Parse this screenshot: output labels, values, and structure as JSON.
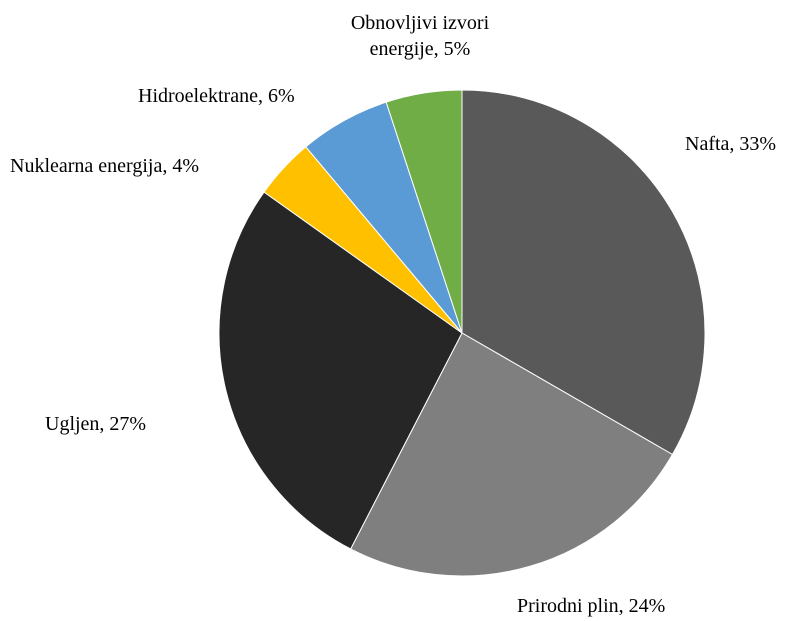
{
  "chart_data": {
    "type": "pie",
    "values": [
      33,
      24,
      27,
      4,
      6,
      5
    ],
    "value_labels": [
      "Nafta, 33%",
      "Prirodni plin, 24%",
      "Ugljen, 27%",
      "Nuklearna energija, 4%",
      "Hidroelektrane, 6%",
      "Obnovljivi izvori energije, 5%"
    ],
    "colors": [
      "#595959",
      "#7f7f7f",
      "#262626",
      "#ffc000",
      "#5b9bd5",
      "#70ad47"
    ]
  }
}
